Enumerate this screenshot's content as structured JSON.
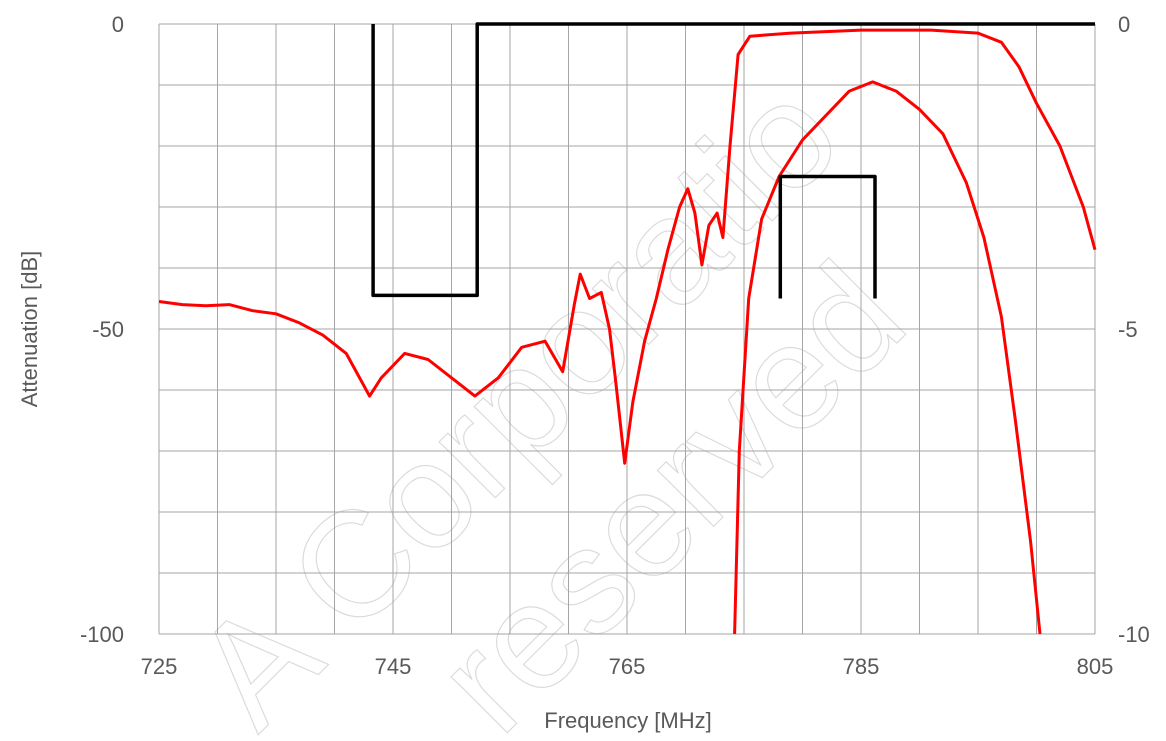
{
  "chart_data": {
    "type": "line",
    "title": "",
    "xlabel": "Frequency [MHz]",
    "ylabel": "Attenuation  [dB]",
    "xlim": [
      725,
      805
    ],
    "ylim_left": [
      -100,
      0
    ],
    "ylim_right": [
      -10,
      0
    ],
    "x_tick_labels": [
      "725",
      "745",
      "765",
      "785",
      "805"
    ],
    "y_left_tick_labels": [
      "0",
      "-50",
      "-100"
    ],
    "y_right_tick_labels": [
      "0",
      "-5",
      "-10"
    ],
    "grid": true,
    "legend": "none",
    "colors": {
      "response": "#ff0000",
      "mask": "#000000",
      "grid": "#a6a6a6"
    },
    "series": [
      {
        "axis": "left",
        "color": "#ff0000",
        "points": [
          [
            725,
            -45.5
          ],
          [
            727,
            -46
          ],
          [
            729,
            -46.2
          ],
          [
            731,
            -46
          ],
          [
            733,
            -47
          ],
          [
            735,
            -47.5
          ],
          [
            737,
            -49
          ],
          [
            739,
            -51
          ],
          [
            741,
            -54
          ],
          [
            743,
            -61
          ],
          [
            744,
            -58
          ],
          [
            746,
            -54
          ],
          [
            748,
            -55
          ],
          [
            750,
            -58
          ],
          [
            752,
            -61
          ],
          [
            754,
            -58
          ],
          [
            756,
            -53
          ],
          [
            758,
            -52
          ],
          [
            759.5,
            -57
          ],
          [
            760.5,
            -46
          ],
          [
            761,
            -41
          ],
          [
            761.8,
            -45
          ],
          [
            762.8,
            -44
          ],
          [
            763.5,
            -50
          ],
          [
            764,
            -58
          ],
          [
            764.8,
            -72
          ],
          [
            765.5,
            -62
          ],
          [
            766.5,
            -52
          ],
          [
            767.5,
            -45
          ],
          [
            768.5,
            -37
          ],
          [
            769.5,
            -30
          ],
          [
            770.2,
            -27
          ],
          [
            770.8,
            -31
          ],
          [
            771.4,
            -39.5
          ],
          [
            772,
            -33
          ],
          [
            772.7,
            -31
          ],
          [
            773.2,
            -35
          ],
          [
            773.8,
            -20
          ],
          [
            774.5,
            -5
          ],
          [
            775.5,
            -2
          ],
          [
            779,
            -1.5
          ],
          [
            785,
            -1
          ],
          [
            791,
            -1
          ],
          [
            795,
            -1.5
          ],
          [
            797,
            -3
          ],
          [
            798.5,
            -7
          ],
          [
            800,
            -13
          ],
          [
            802,
            -20
          ],
          [
            804,
            -30
          ],
          [
            805,
            -37
          ]
        ]
      },
      {
        "axis": "right",
        "color": "#ff0000",
        "points": [
          [
            774.2,
            -10
          ],
          [
            774.6,
            -7
          ],
          [
            775.4,
            -4.5
          ],
          [
            776.5,
            -3.2
          ],
          [
            778,
            -2.5
          ],
          [
            780,
            -1.9
          ],
          [
            782,
            -1.5
          ],
          [
            784,
            -1.1
          ],
          [
            786,
            -0.95
          ],
          [
            788,
            -1.1
          ],
          [
            790,
            -1.4
          ],
          [
            792,
            -1.8
          ],
          [
            794,
            -2.6
          ],
          [
            795.5,
            -3.5
          ],
          [
            797,
            -4.8
          ],
          [
            798.2,
            -6.5
          ],
          [
            799.5,
            -8.5
          ],
          [
            800.3,
            -10
          ]
        ]
      },
      {
        "axis": "left",
        "color": "#000000",
        "points": [
          [
            743.3,
            0
          ],
          [
            743.3,
            -44.5
          ],
          [
            752.2,
            -44.5
          ],
          [
            752.2,
            0
          ],
          [
            805,
            0
          ]
        ]
      },
      {
        "axis": "right",
        "color": "#000000",
        "points": [
          [
            778.1,
            -4.5
          ],
          [
            778.1,
            -2.5
          ],
          [
            786.2,
            -2.5
          ],
          [
            786.2,
            -4.5
          ]
        ]
      }
    ]
  }
}
